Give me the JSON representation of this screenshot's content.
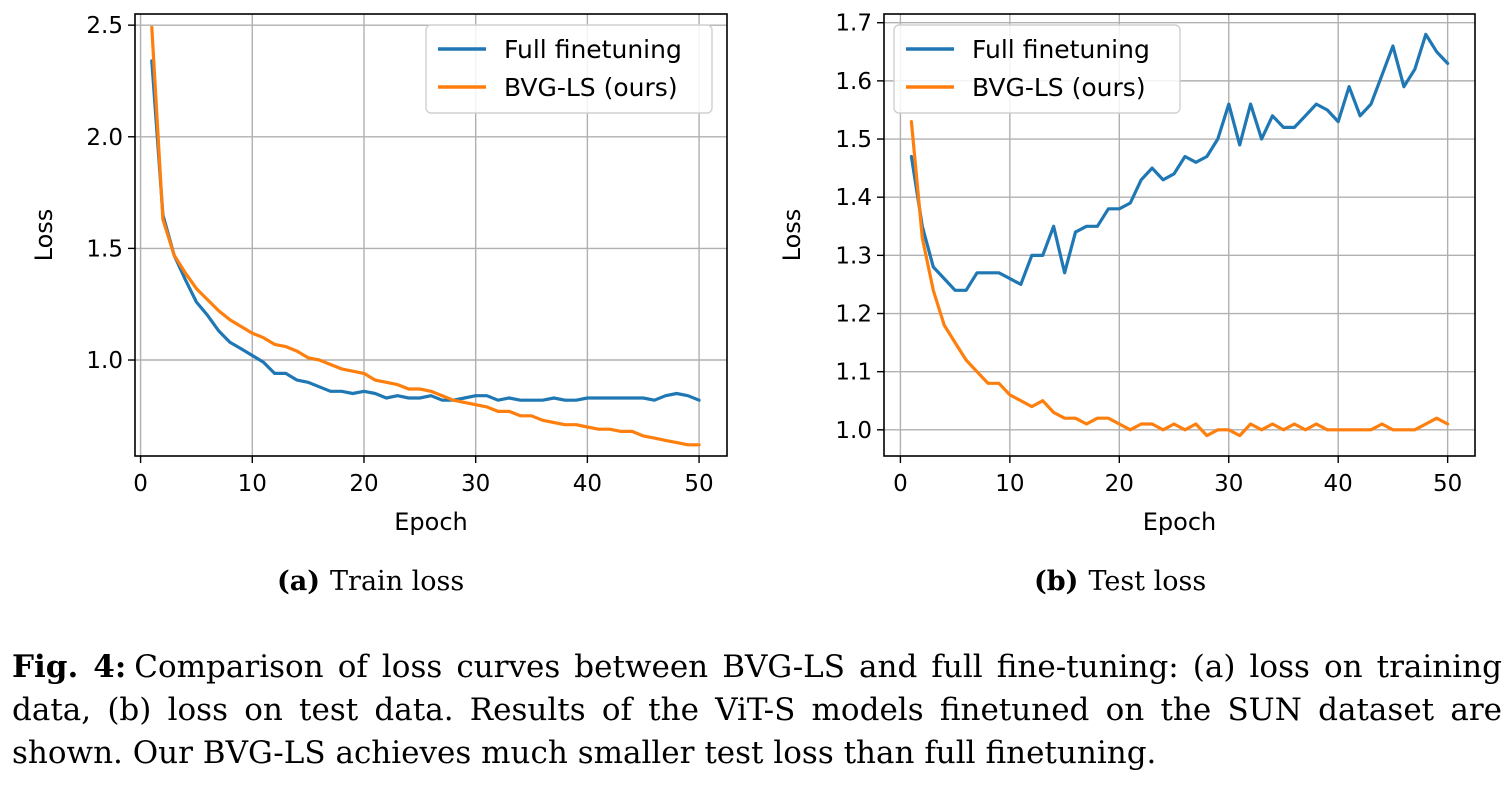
{
  "colors": {
    "full_finetuning": "#1f77b4",
    "bvg_ls": "#ff7f0e",
    "grid": "#b0b0b0"
  },
  "subcaptions": [
    {
      "label": "(a)",
      "text": "Train loss"
    },
    {
      "label": "(b)",
      "text": "Test loss"
    }
  ],
  "figure_caption": {
    "label": "Fig. 4:",
    "text": "Comparison of loss curves between BVG-LS and full fine-tuning: (a) loss on training data, (b) loss on test data. Results of the ViT-S models finetuned on the SUN dataset are shown. Our BVG-LS achieves much smaller test loss than full finetuning."
  },
  "chart_data": [
    {
      "type": "line",
      "xlabel": "Epoch",
      "ylabel": "Loss",
      "xlim": [
        -0.5,
        52.5
      ],
      "ylim": [
        0.57,
        2.55
      ],
      "xticks": [
        0,
        10,
        20,
        30,
        40,
        50
      ],
      "yticks": [
        1.0,
        1.5,
        2.0,
        2.5
      ],
      "ytick_labels": [
        "1.0",
        "1.5",
        "2.0",
        "2.5"
      ],
      "grid": true,
      "legend_position": "top-right",
      "x": [
        1,
        2,
        3,
        4,
        5,
        6,
        7,
        8,
        9,
        10,
        11,
        12,
        13,
        14,
        15,
        16,
        17,
        18,
        19,
        20,
        21,
        22,
        23,
        24,
        25,
        26,
        27,
        28,
        29,
        30,
        31,
        32,
        33,
        34,
        35,
        36,
        37,
        38,
        39,
        40,
        41,
        42,
        43,
        44,
        45,
        46,
        47,
        48,
        49,
        50
      ],
      "series": [
        {
          "name": "Full finetuning",
          "color": "#1f77b4",
          "values": [
            2.34,
            1.65,
            1.47,
            1.36,
            1.26,
            1.2,
            1.13,
            1.08,
            1.05,
            1.02,
            0.99,
            0.94,
            0.94,
            0.91,
            0.9,
            0.88,
            0.86,
            0.86,
            0.85,
            0.86,
            0.85,
            0.83,
            0.84,
            0.83,
            0.83,
            0.84,
            0.82,
            0.82,
            0.83,
            0.84,
            0.84,
            0.82,
            0.83,
            0.82,
            0.82,
            0.82,
            0.83,
            0.82,
            0.82,
            0.83,
            0.83,
            0.83,
            0.83,
            0.83,
            0.83,
            0.82,
            0.84,
            0.85,
            0.84,
            0.82
          ]
        },
        {
          "name": "BVG-LS (ours)",
          "color": "#ff7f0e",
          "values": [
            2.49,
            1.63,
            1.47,
            1.39,
            1.32,
            1.27,
            1.22,
            1.18,
            1.15,
            1.12,
            1.1,
            1.07,
            1.06,
            1.04,
            1.01,
            1.0,
            0.98,
            0.96,
            0.95,
            0.94,
            0.91,
            0.9,
            0.89,
            0.87,
            0.87,
            0.86,
            0.84,
            0.82,
            0.81,
            0.8,
            0.79,
            0.77,
            0.77,
            0.75,
            0.75,
            0.73,
            0.72,
            0.71,
            0.71,
            0.7,
            0.69,
            0.69,
            0.68,
            0.68,
            0.66,
            0.65,
            0.64,
            0.63,
            0.62,
            0.62
          ]
        }
      ]
    },
    {
      "type": "line",
      "xlabel": "Epoch",
      "ylabel": "Loss",
      "xlim": [
        -1.5,
        52.5
      ],
      "ylim": [
        0.955,
        1.715
      ],
      "xticks": [
        0,
        10,
        20,
        30,
        40,
        50
      ],
      "yticks": [
        1.0,
        1.1,
        1.2,
        1.3,
        1.4,
        1.5,
        1.6,
        1.7
      ],
      "ytick_labels": [
        "1.0",
        "1.1",
        "1.2",
        "1.3",
        "1.4",
        "1.5",
        "1.6",
        "1.7"
      ],
      "grid": true,
      "legend_position": "top-left",
      "x": [
        1,
        2,
        3,
        4,
        5,
        6,
        7,
        8,
        9,
        10,
        11,
        12,
        13,
        14,
        15,
        16,
        17,
        18,
        19,
        20,
        21,
        22,
        23,
        24,
        25,
        26,
        27,
        28,
        29,
        30,
        31,
        32,
        33,
        34,
        35,
        36,
        37,
        38,
        39,
        40,
        41,
        42,
        43,
        44,
        45,
        46,
        47,
        48,
        49,
        50
      ],
      "series": [
        {
          "name": "Full finetuning",
          "color": "#1f77b4",
          "values": [
            1.47,
            1.35,
            1.28,
            1.26,
            1.24,
            1.24,
            1.27,
            1.27,
            1.27,
            1.26,
            1.25,
            1.3,
            1.3,
            1.35,
            1.27,
            1.34,
            1.35,
            1.35,
            1.38,
            1.38,
            1.39,
            1.43,
            1.45,
            1.43,
            1.44,
            1.47,
            1.46,
            1.47,
            1.5,
            1.56,
            1.49,
            1.56,
            1.5,
            1.54,
            1.52,
            1.52,
            1.54,
            1.56,
            1.55,
            1.53,
            1.59,
            1.54,
            1.56,
            1.61,
            1.66,
            1.59,
            1.62,
            1.68,
            1.65,
            1.63
          ]
        },
        {
          "name": "BVG-LS (ours)",
          "color": "#ff7f0e",
          "values": [
            1.53,
            1.33,
            1.24,
            1.18,
            1.15,
            1.12,
            1.1,
            1.08,
            1.08,
            1.06,
            1.05,
            1.04,
            1.05,
            1.03,
            1.02,
            1.02,
            1.01,
            1.02,
            1.02,
            1.01,
            1.0,
            1.01,
            1.01,
            1.0,
            1.01,
            1.0,
            1.01,
            0.99,
            1.0,
            1.0,
            0.99,
            1.01,
            1.0,
            1.01,
            1.0,
            1.01,
            1.0,
            1.01,
            1.0,
            1.0,
            1.0,
            1.0,
            1.0,
            1.01,
            1.0,
            1.0,
            1.0,
            1.01,
            1.02,
            1.01
          ]
        }
      ]
    }
  ]
}
